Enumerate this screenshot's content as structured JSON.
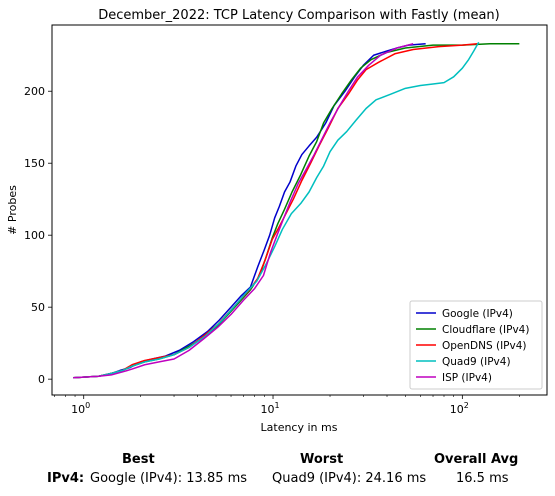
{
  "chart_data": {
    "type": "line",
    "title": "December_2022: TCP Latency Comparison with Fastly (mean)",
    "xlabel": "Latency in ms",
    "ylabel": "# Probes",
    "xscale": "log",
    "xlim": [
      0.68,
      280
    ],
    "ylim": [
      -11,
      246
    ],
    "x_ticks": [
      {
        "value": 1,
        "label": "10",
        "exp": "0"
      },
      {
        "value": 10,
        "label": "10",
        "exp": "1"
      },
      {
        "value": 100,
        "label": "10",
        "exp": "2"
      }
    ],
    "y_ticks": [
      0,
      50,
      100,
      150,
      200
    ],
    "grid": false,
    "legend_position": "lower-right",
    "series": [
      {
        "name": "Google (IPv4)",
        "color": "#0000cc",
        "points": [
          [
            0.88,
            1
          ],
          [
            1.2,
            2
          ],
          [
            1.4,
            4
          ],
          [
            1.55,
            6
          ],
          [
            1.75,
            8
          ],
          [
            2.0,
            12
          ],
          [
            2.3,
            14
          ],
          [
            2.7,
            16
          ],
          [
            3.2,
            20
          ],
          [
            3.8,
            26
          ],
          [
            4.5,
            33
          ],
          [
            5.2,
            41
          ],
          [
            6.0,
            50
          ],
          [
            6.8,
            58
          ],
          [
            7.6,
            64
          ],
          [
            8.3,
            78
          ],
          [
            9.0,
            90
          ],
          [
            9.6,
            100
          ],
          [
            10.2,
            112
          ],
          [
            10.8,
            120
          ],
          [
            11.5,
            130
          ],
          [
            12.3,
            137
          ],
          [
            13.2,
            148
          ],
          [
            14.2,
            156
          ],
          [
            15.5,
            162
          ],
          [
            17.0,
            168
          ],
          [
            19.0,
            178
          ],
          [
            21.0,
            190
          ],
          [
            24.0,
            200
          ],
          [
            27.0,
            210
          ],
          [
            30.0,
            218
          ],
          [
            34.0,
            225
          ],
          [
            40.0,
            228
          ],
          [
            45.0,
            230
          ],
          [
            52.0,
            232
          ],
          [
            64.0,
            233
          ]
        ]
      },
      {
        "name": "Cloudflare (IPv4)",
        "color": "#008000",
        "points": [
          [
            0.88,
            1
          ],
          [
            1.2,
            2
          ],
          [
            1.4,
            4
          ],
          [
            1.6,
            6
          ],
          [
            1.8,
            9
          ],
          [
            2.1,
            12
          ],
          [
            2.5,
            14
          ],
          [
            3.0,
            17
          ],
          [
            3.5,
            22
          ],
          [
            4.2,
            28
          ],
          [
            5.0,
            36
          ],
          [
            5.8,
            45
          ],
          [
            6.7,
            54
          ],
          [
            7.6,
            62
          ],
          [
            8.5,
            72
          ],
          [
            9.2,
            85
          ],
          [
            9.9,
            98
          ],
          [
            10.6,
            108
          ],
          [
            11.5,
            118
          ],
          [
            12.6,
            130
          ],
          [
            14.0,
            142
          ],
          [
            15.5,
            155
          ],
          [
            17.0,
            165
          ],
          [
            18.5,
            178
          ],
          [
            20.5,
            188
          ],
          [
            23.0,
            198
          ],
          [
            26.0,
            208
          ],
          [
            29.0,
            216
          ],
          [
            33.0,
            222
          ],
          [
            40.0,
            227
          ],
          [
            50.0,
            230
          ],
          [
            70.0,
            232
          ],
          [
            100.0,
            232
          ],
          [
            140.0,
            233
          ],
          [
            200.0,
            233
          ]
        ]
      },
      {
        "name": "OpenDNS (IPv4)",
        "color": "#ff0000",
        "points": [
          [
            0.88,
            1
          ],
          [
            1.2,
            2
          ],
          [
            1.4,
            4
          ],
          [
            1.6,
            6
          ],
          [
            1.8,
            10
          ],
          [
            2.1,
            13
          ],
          [
            2.5,
            15
          ],
          [
            3.0,
            17
          ],
          [
            3.6,
            22
          ],
          [
            4.3,
            30
          ],
          [
            5.1,
            38
          ],
          [
            5.9,
            47
          ],
          [
            6.7,
            55
          ],
          [
            7.5,
            62
          ],
          [
            8.3,
            70
          ],
          [
            9.1,
            83
          ],
          [
            9.9,
            97
          ],
          [
            10.7,
            105
          ],
          [
            11.6,
            114
          ],
          [
            12.8,
            125
          ],
          [
            14.2,
            138
          ],
          [
            15.8,
            150
          ],
          [
            17.5,
            162
          ],
          [
            19.5,
            174
          ],
          [
            22.0,
            188
          ],
          [
            25.0,
            198
          ],
          [
            28.0,
            208
          ],
          [
            31.0,
            215
          ],
          [
            36.0,
            220
          ],
          [
            44.0,
            226
          ],
          [
            55.0,
            229
          ],
          [
            75.0,
            231
          ],
          [
            100.0,
            232
          ],
          [
            120.0,
            233
          ]
        ]
      },
      {
        "name": "Quad9 (IPv4)",
        "color": "#00bfbf",
        "points": [
          [
            0.88,
            1
          ],
          [
            1.2,
            2
          ],
          [
            1.4,
            4
          ],
          [
            1.6,
            6
          ],
          [
            1.8,
            9
          ],
          [
            2.1,
            12
          ],
          [
            2.5,
            14
          ],
          [
            3.0,
            17
          ],
          [
            3.6,
            22
          ],
          [
            4.4,
            30
          ],
          [
            5.3,
            40
          ],
          [
            6.2,
            50
          ],
          [
            7.2,
            60
          ],
          [
            8.2,
            68
          ],
          [
            9.2,
            80
          ],
          [
            10.2,
            92
          ],
          [
            11.2,
            104
          ],
          [
            12.5,
            115
          ],
          [
            14.0,
            122
          ],
          [
            15.5,
            130
          ],
          [
            17.0,
            140
          ],
          [
            18.5,
            148
          ],
          [
            20.0,
            158
          ],
          [
            22.0,
            166
          ],
          [
            24.5,
            172
          ],
          [
            27.5,
            180
          ],
          [
            31.0,
            188
          ],
          [
            35.0,
            194
          ],
          [
            42.0,
            198
          ],
          [
            50.0,
            202
          ],
          [
            60.0,
            204
          ],
          [
            70.0,
            205
          ],
          [
            80.0,
            206
          ],
          [
            90.0,
            210
          ],
          [
            100.0,
            216
          ],
          [
            108.0,
            222
          ],
          [
            115.0,
            228
          ],
          [
            122.0,
            234
          ]
        ]
      },
      {
        "name": "ISP (IPv4)",
        "color": "#bf00bf",
        "points": [
          [
            0.88,
            1
          ],
          [
            1.2,
            2
          ],
          [
            1.4,
            3
          ],
          [
            1.6,
            5
          ],
          [
            1.8,
            7
          ],
          [
            2.1,
            10
          ],
          [
            2.5,
            12
          ],
          [
            3.0,
            14
          ],
          [
            3.6,
            20
          ],
          [
            4.3,
            28
          ],
          [
            5.1,
            36
          ],
          [
            6.0,
            45
          ],
          [
            7.0,
            55
          ],
          [
            8.0,
            63
          ],
          [
            8.9,
            72
          ],
          [
            9.7,
            88
          ],
          [
            10.5,
            100
          ],
          [
            11.4,
            112
          ],
          [
            12.4,
            124
          ],
          [
            13.6,
            136
          ],
          [
            15.0,
            146
          ],
          [
            16.5,
            156
          ],
          [
            18.0,
            166
          ],
          [
            20.0,
            178
          ],
          [
            22.5,
            190
          ],
          [
            25.0,
            200
          ],
          [
            28.0,
            210
          ],
          [
            32.0,
            218
          ],
          [
            37.0,
            225
          ],
          [
            45.0,
            230
          ],
          [
            55.0,
            233
          ]
        ]
      }
    ]
  },
  "summary": {
    "best_header": "Best",
    "worst_header": "Worst",
    "avg_header": "Overall Avg",
    "row_label": "IPv4:",
    "best_value": "Google (IPv4): 13.85 ms",
    "worst_value": "Quad9 (IPv4): 24.16 ms",
    "avg_value": "16.5 ms"
  }
}
